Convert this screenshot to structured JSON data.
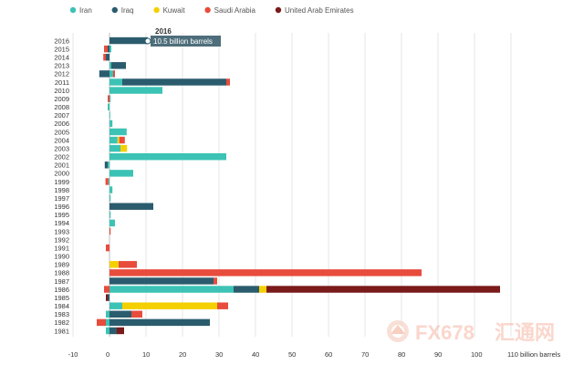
{
  "chart_data": {
    "type": "bar",
    "orientation": "horizontal",
    "stacked": true,
    "categories": [
      "2016",
      "2015",
      "2014",
      "2013",
      "2012",
      "2011",
      "2010",
      "2009",
      "2008",
      "2007",
      "2006",
      "2005",
      "2004",
      "2003",
      "2002",
      "2001",
      "2000",
      "1999",
      "1998",
      "1997",
      "1996",
      "1995",
      "1994",
      "1993",
      "1992",
      "1991",
      "1990",
      "1989",
      "1988",
      "1987",
      "1986",
      "1985",
      "1984",
      "1983",
      "1982",
      "1981"
    ],
    "series": [
      {
        "name": "Iran",
        "color": "#3cc3b5",
        "values": [
          0,
          0.5,
          0,
          0.5,
          1,
          3.5,
          14.5,
          0.3,
          -0.5,
          0.2,
          0.8,
          4.7,
          2.2,
          3,
          32,
          -0.5,
          6.5,
          -0.3,
          0.8,
          0.3,
          0,
          0.3,
          1.5,
          0,
          0,
          0,
          0,
          0,
          0,
          0,
          34,
          0,
          3.5,
          -1,
          -1,
          -1
        ]
      },
      {
        "name": "Iraq",
        "color": "#2b5c6e",
        "values": [
          10.5,
          -0.5,
          -1,
          4,
          -2.8,
          28.5,
          0,
          0,
          0,
          0,
          0,
          0,
          0,
          0,
          0,
          -0.8,
          0,
          0,
          0,
          0,
          12,
          0,
          0,
          0,
          0,
          0,
          0,
          0,
          0,
          28.5,
          7,
          -0.5,
          0,
          6,
          27.5,
          2
        ]
      },
      {
        "name": "Kuwait",
        "color": "#f5d000",
        "values": [
          0,
          0,
          0,
          0,
          0,
          0,
          0,
          0,
          0,
          0,
          0,
          0,
          0.5,
          1.8,
          0,
          0,
          0,
          0,
          0,
          0,
          0,
          0,
          0,
          0,
          0,
          0,
          0,
          2.5,
          0,
          0,
          2,
          0,
          26,
          0,
          0,
          0
        ]
      },
      {
        "name": "Saudi Arabia",
        "color": "#e84c3d",
        "values": [
          0,
          -1,
          -0.7,
          0,
          0.5,
          1,
          0,
          -0.5,
          0,
          0,
          0,
          0,
          1.5,
          0,
          0,
          0,
          0,
          -0.8,
          0,
          0,
          0,
          0,
          0,
          0.3,
          0,
          -1,
          0,
          5,
          85.5,
          1,
          -1.5,
          0,
          3,
          3,
          -2.5,
          0
        ]
      },
      {
        "name": "United Arab Emirates",
        "color": "#7a1a1a",
        "values": [
          0,
          0,
          0,
          0,
          0,
          0,
          0,
          0,
          0,
          0,
          0,
          0,
          0,
          0,
          0,
          0,
          0,
          0,
          0,
          0,
          0,
          0,
          0,
          0,
          0,
          0,
          0,
          0,
          0,
          0,
          64,
          -0.5,
          0,
          0,
          0,
          2
        ]
      }
    ],
    "xlim": [
      -10,
      110
    ],
    "xticks": [
      "-10",
      "0",
      "10",
      "20",
      "30",
      "40",
      "50",
      "60",
      "70",
      "80",
      "90",
      "100",
      "110 billion barrels"
    ],
    "grid": true,
    "legend": "top-left"
  },
  "tooltip": {
    "title": "2016",
    "text": "10.5 billion barrels",
    "category": "2016"
  },
  "watermark": {
    "brand": "FX678",
    "sub": "汇通网"
  }
}
